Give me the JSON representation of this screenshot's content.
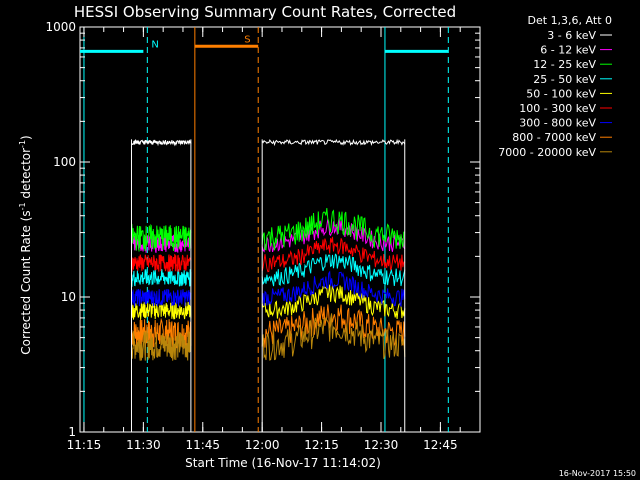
{
  "chart_data": {
    "type": "line",
    "title": "HESSI Observing Summary Count Rates, Corrected",
    "xlabel": "Start Time (16-Nov-17 11:14:02)",
    "ylabel_main": "Corrected Count Rate (s",
    "ylabel_sup1": "-1",
    "ylabel_mid": " detector",
    "ylabel_sup2": "-1",
    "ylabel_end": ")",
    "y_scale": "log",
    "ylim": [
      1,
      1000
    ],
    "xlim": [
      "11:14",
      "12:55"
    ],
    "x_ticks": [
      "11:15",
      "11:30",
      "11:45",
      "12:00",
      "12:15",
      "12:30",
      "12:45"
    ],
    "y_ticks": [
      "1",
      "10",
      "100",
      "1000"
    ],
    "legend_title": "Det 1,3,6, Att 0",
    "legend_position": "right",
    "series": [
      {
        "name": "3 - 6 keV",
        "color": "#ffffff"
      },
      {
        "name": "6 - 12 keV",
        "color": "#ff00ff"
      },
      {
        "name": "12 - 25 keV",
        "color": "#00ff00"
      },
      {
        "name": "25 - 50 keV",
        "color": "#00ffff"
      },
      {
        "name": "50 - 100 keV",
        "color": "#ffff00"
      },
      {
        "name": "100 - 300 keV",
        "color": "#ff0000"
      },
      {
        "name": "300 - 800 keV",
        "color": "#0000ff"
      },
      {
        "name": "800 - 7000 keV",
        "color": "#ff7f00"
      },
      {
        "name": "7000 - 20000 keV",
        "color": "#b8860b"
      }
    ],
    "data_segments": [
      {
        "start": "11:27",
        "end": "11:42"
      },
      {
        "start": "12:00",
        "end": "12:36"
      }
    ],
    "approx_levels": {
      "3 - 6 keV": 140,
      "6 - 12 keV": 25,
      "12 - 25 keV": 28,
      "25 - 50 keV": 14,
      "50 - 100 keV": 8,
      "100 - 300 keV": 18,
      "300 - 800 keV": 10,
      "800 - 7000 keV": 5.5,
      "7000 - 20000 keV": 4.5
    },
    "annotations": [
      {
        "label": "N",
        "color": "#00ffff",
        "bar": [
          "11:14",
          "11:30"
        ],
        "bar2": [
          "12:31",
          "12:47"
        ],
        "level": 660,
        "edges": [
          "11:15",
          "11:31",
          "12:31",
          "12:47"
        ]
      },
      {
        "label": "S",
        "color": "#ff7f00",
        "bar": [
          "11:43",
          "11:59"
        ],
        "level": 720,
        "edges": [
          "11:43",
          "11:59"
        ]
      }
    ],
    "footer_date": "16-Nov-2017 15:50"
  }
}
